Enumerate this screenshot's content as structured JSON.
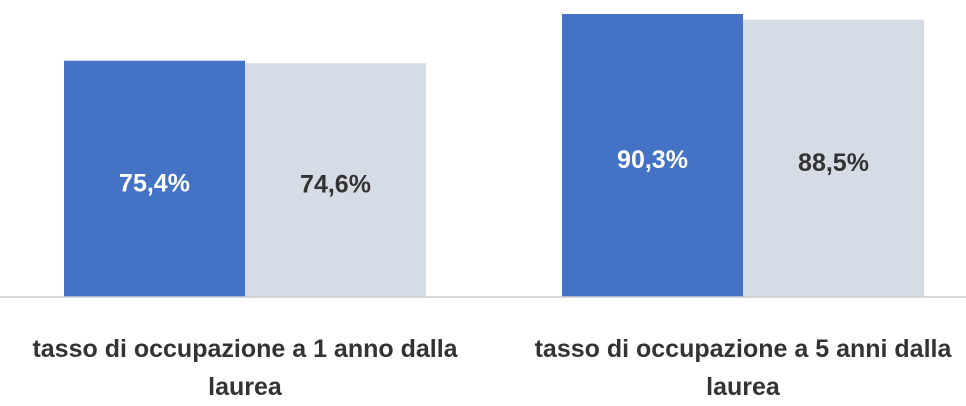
{
  "chart_data": {
    "type": "bar",
    "categories": [
      "tasso di occupazione a 1 anno dalla laurea",
      "tasso di occupazione a 5 anni dalla laurea"
    ],
    "series": [
      {
        "color": "#4472c4",
        "values": [
          75.4,
          90.3
        ],
        "value_labels": [
          "75,4%",
          "90,3%"
        ]
      },
      {
        "color": "#d6dce5",
        "values": [
          74.6,
          88.5
        ],
        "value_labels": [
          "74,6%",
          "88,5%"
        ]
      }
    ]
  }
}
